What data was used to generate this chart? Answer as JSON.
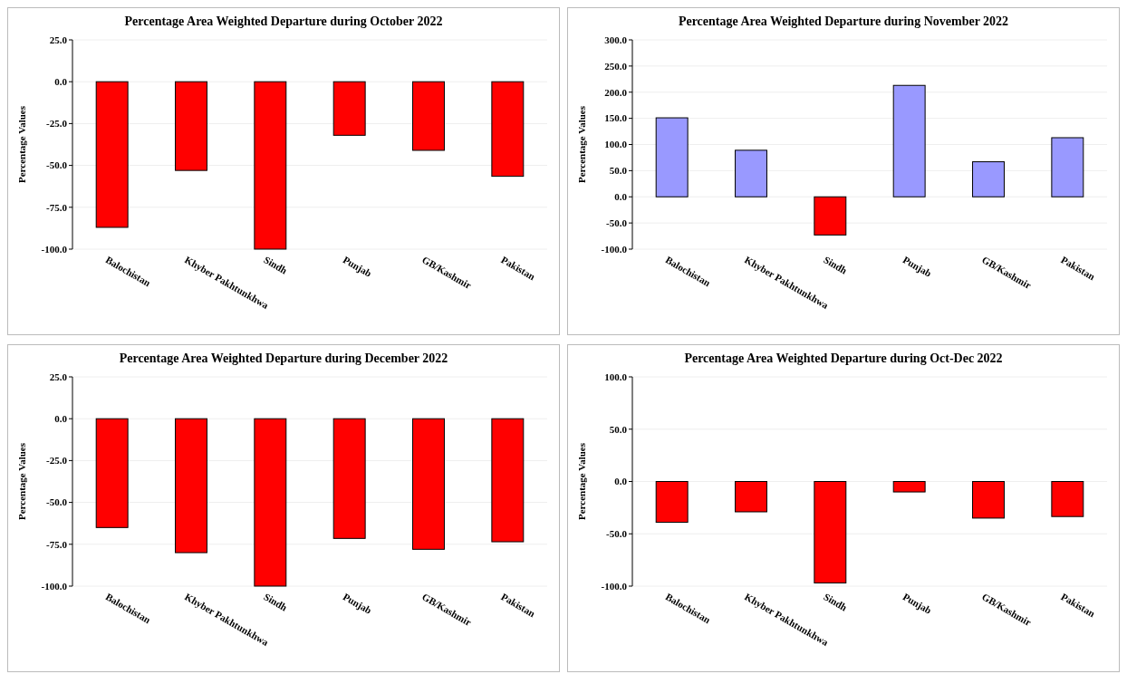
{
  "chart_data": [
    {
      "type": "bar",
      "title": "Percentage Area Weighted Departure during October 2022",
      "ylabel": "Percentage Values",
      "categories": [
        "Balochistan",
        "Khyber Pakhtunkhwa",
        "Sindh",
        "Punjab",
        "GB/Kashmir",
        "Pakistan"
      ],
      "values": [
        -87,
        -53,
        -100,
        -32,
        -41,
        -56.5
      ],
      "colors": [
        "#ff0000",
        "#ff0000",
        "#ff0000",
        "#ff0000",
        "#ff0000",
        "#ff0000"
      ],
      "ylim": [
        -100,
        25
      ],
      "yticks": [
        {
          "value": -100,
          "label": "-100.0"
        },
        {
          "value": -75,
          "label": "-75.0"
        },
        {
          "value": -50,
          "label": "-50.0"
        },
        {
          "value": -25,
          "label": "-25.0"
        },
        {
          "value": 0,
          "label": "0.0"
        },
        {
          "value": 25,
          "label": "25.0"
        }
      ],
      "grid": "y"
    },
    {
      "type": "bar",
      "title": "Percentage Area Weighted Departure during November 2022",
      "ylabel": "Percentage Values",
      "categories": [
        "Balochistan",
        "Khyber Pakhtunkhwa",
        "Sindh",
        "Punjab",
        "GB/Kashmir",
        "Pakistan"
      ],
      "values": [
        151,
        89,
        -73,
        213,
        67,
        113
      ],
      "colors": [
        "#9999ff",
        "#9999ff",
        "#ff0000",
        "#9999ff",
        "#9999ff",
        "#9999ff"
      ],
      "ylim": [
        -100,
        300
      ],
      "yticks": [
        {
          "value": -100,
          "label": "-100.0"
        },
        {
          "value": -50,
          "label": "-50.0"
        },
        {
          "value": 0,
          "label": "0.0"
        },
        {
          "value": 50,
          "label": "50.0"
        },
        {
          "value": 100,
          "label": "100.0"
        },
        {
          "value": 150,
          "label": "150.0"
        },
        {
          "value": 200,
          "label": "200.0"
        },
        {
          "value": 250,
          "label": "250.0"
        },
        {
          "value": 300,
          "label": "300.0"
        }
      ],
      "grid": "y"
    },
    {
      "type": "bar",
      "title": "Percentage Area Weighted Departure during December 2022",
      "ylabel": "Percentage Values",
      "categories": [
        "Balochistan",
        "Khyber Pakhtunkhwa",
        "Sindh",
        "Punjab",
        "GB/Kashmir",
        "Pakistan"
      ],
      "values": [
        -65,
        -80,
        -100,
        -71.5,
        -78,
        -73.5
      ],
      "colors": [
        "#ff0000",
        "#ff0000",
        "#ff0000",
        "#ff0000",
        "#ff0000",
        "#ff0000"
      ],
      "ylim": [
        -100,
        25
      ],
      "yticks": [
        {
          "value": -100,
          "label": "-100.0"
        },
        {
          "value": -75,
          "label": "-75.0"
        },
        {
          "value": -50,
          "label": "-50.0"
        },
        {
          "value": -25,
          "label": "-25.0"
        },
        {
          "value": 0,
          "label": "0.0"
        },
        {
          "value": 25,
          "label": "25.0"
        }
      ],
      "grid": "y"
    },
    {
      "type": "bar",
      "title": "Percentage Area Weighted Departure during Oct-Dec 2022",
      "ylabel": "Percentage Values",
      "categories": [
        "Balochistan",
        "Khyber Pakhtunkhwa",
        "Sindh",
        "Punjab",
        "GB/Kashmir",
        "Pakistan"
      ],
      "values": [
        -39,
        -29,
        -97,
        -10,
        -35,
        -33.5
      ],
      "colors": [
        "#ff0000",
        "#ff0000",
        "#ff0000",
        "#ff0000",
        "#ff0000",
        "#ff0000"
      ],
      "ylim": [
        -100,
        100
      ],
      "yticks": [
        {
          "value": -100,
          "label": "-100.0"
        },
        {
          "value": -50,
          "label": "-50.0"
        },
        {
          "value": 0,
          "label": "0.0"
        },
        {
          "value": 50,
          "label": "50.0"
        },
        {
          "value": 100,
          "label": "100.0"
        }
      ],
      "grid": "y"
    }
  ]
}
